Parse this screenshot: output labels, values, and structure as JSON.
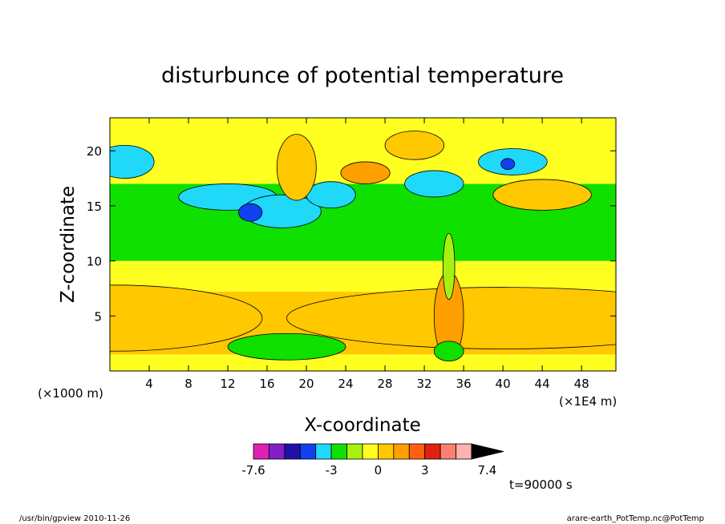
{
  "chart_data": {
    "type": "heatmap",
    "title": "disturbunce of potential temperature",
    "xlabel": "X-coordinate",
    "ylabel": "Z-coordinate",
    "x_unit_left": "(×1000 m)",
    "x_unit_right": "(×1E4 m)",
    "x_range": [
      0,
      51.5
    ],
    "y_range": [
      0,
      23
    ],
    "x_ticks": [
      "4",
      "8",
      "12",
      "16",
      "20",
      "24",
      "28",
      "32",
      "36",
      "40",
      "44",
      "48"
    ],
    "y_ticks": [
      "5",
      "10",
      "15",
      "20"
    ],
    "colorbar": {
      "levels": [
        -7.6,
        -7,
        -6,
        -5,
        -4,
        -3,
        -2,
        -1,
        0,
        1,
        2,
        3,
        4,
        5,
        6,
        7.4
      ],
      "labels": [
        "-7.6",
        "-3",
        "0",
        "3",
        "7.4"
      ],
      "colors": [
        "#e020b0",
        "#8020c8",
        "#2010a8",
        "#1040f0",
        "#20d8f8",
        "#10e000",
        "#a8f010",
        "#ffff20",
        "#ffc800",
        "#ffa000",
        "#ff6010",
        "#e02010",
        "#ff8070",
        "#ffb0b0"
      ]
    },
    "time_label": "t=90000 s",
    "bands": [
      {
        "z": [
          0,
          1.5
        ],
        "level": "#ffff20"
      },
      {
        "z": [
          1.5,
          7.2
        ],
        "level": "#ffc800"
      },
      {
        "z": [
          7.2,
          10
        ],
        "level": "#ffff20"
      },
      {
        "z": [
          10,
          17
        ],
        "level": "#10e000"
      },
      {
        "z": [
          17,
          23
        ],
        "level": "#ffff20"
      }
    ]
  },
  "footer": {
    "left": "/usr/bin/gpview  2010-11-26",
    "right": "arare-earth_PotTemp.nc@PotTemp"
  }
}
